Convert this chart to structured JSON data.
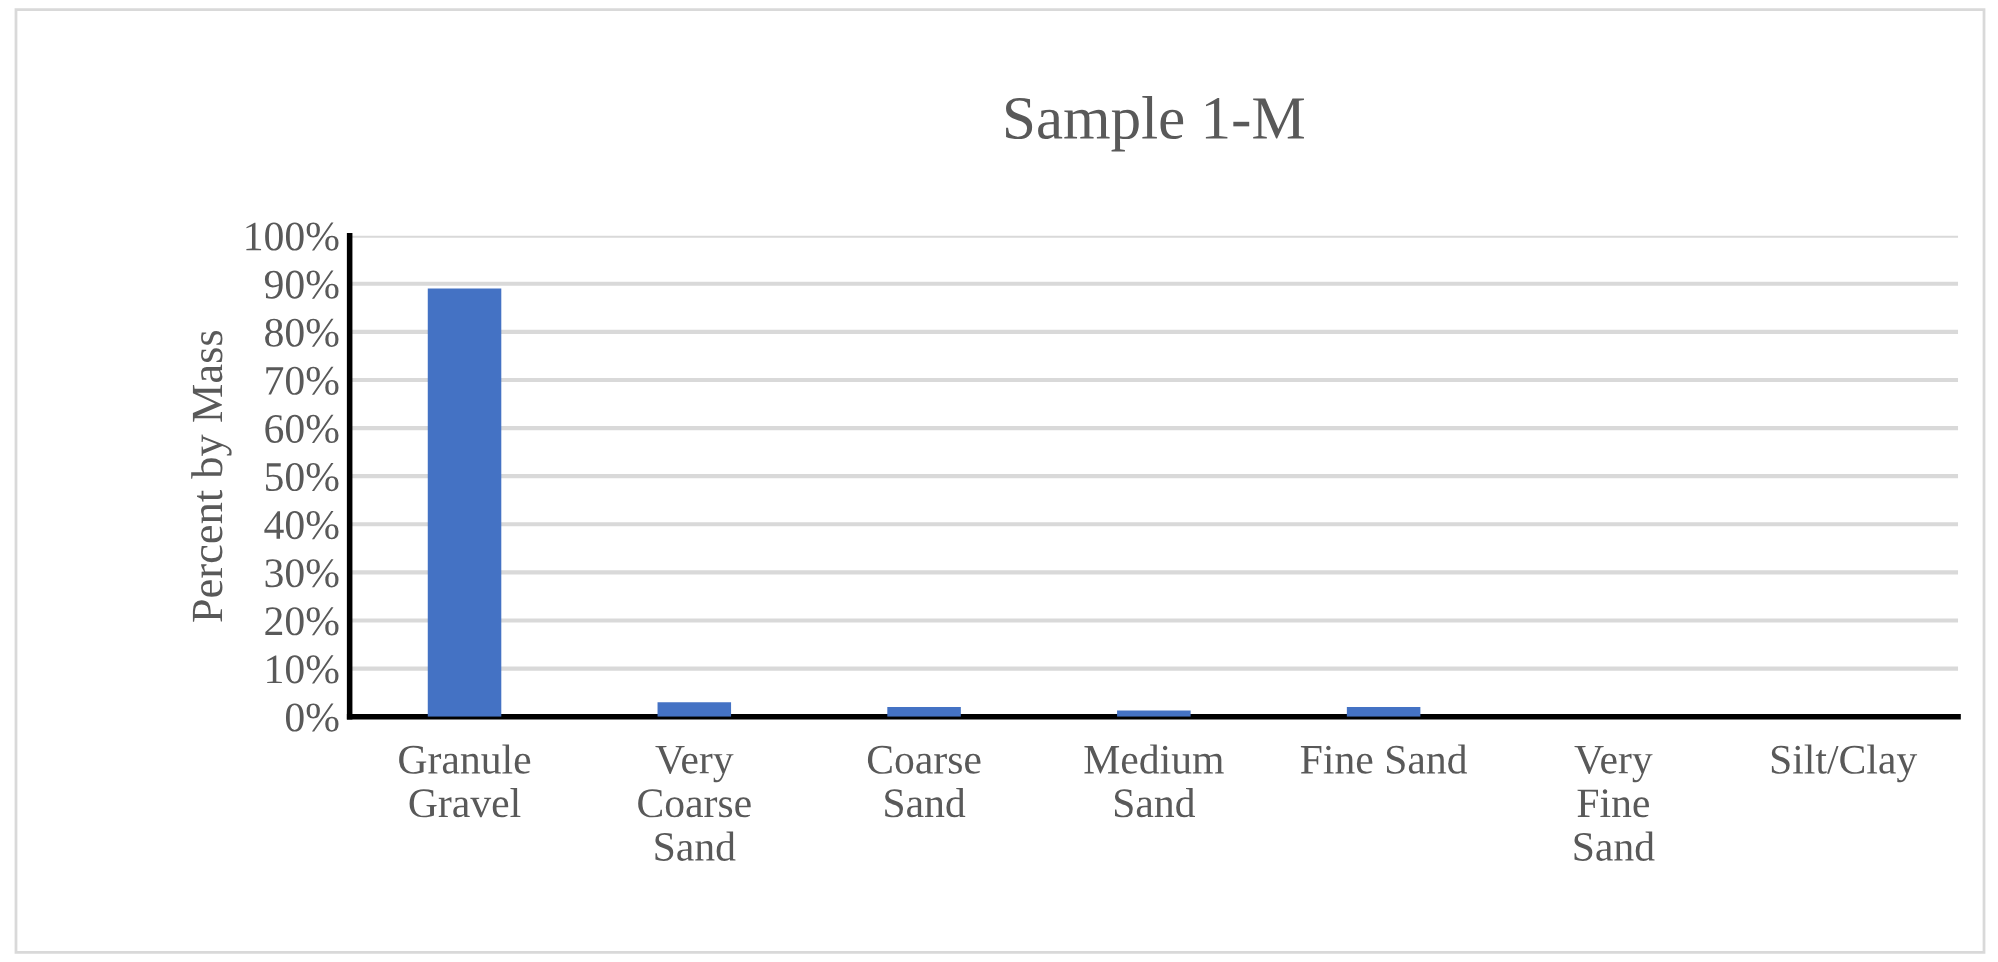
{
  "chart_data": {
    "type": "bar",
    "title": "Sample 1-M",
    "ylabel": "Percent by Mass",
    "categories": [
      "Granule Gravel",
      "Very Coarse Sand",
      "Coarse Sand",
      "Medium Sand",
      "Fine Sand",
      "Very Fine Sand",
      "Silt/Clay"
    ],
    "values": [
      89,
      3,
      2,
      1.3,
      2,
      0,
      0
    ],
    "color": "#4472c4",
    "ylim": [
      0,
      100
    ],
    "yticks": [
      {
        "value": 0,
        "label": "0%"
      },
      {
        "value": 10,
        "label": "10%"
      },
      {
        "value": 20,
        "label": "20%"
      },
      {
        "value": 30,
        "label": "30%"
      },
      {
        "value": 40,
        "label": "40%"
      },
      {
        "value": 50,
        "label": "50%"
      },
      {
        "value": 60,
        "label": "60%"
      },
      {
        "value": 70,
        "label": "70%"
      },
      {
        "value": 80,
        "label": "80%"
      },
      {
        "value": 90,
        "label": "90%"
      },
      {
        "value": 100,
        "label": "100%"
      }
    ],
    "grid": "y"
  }
}
